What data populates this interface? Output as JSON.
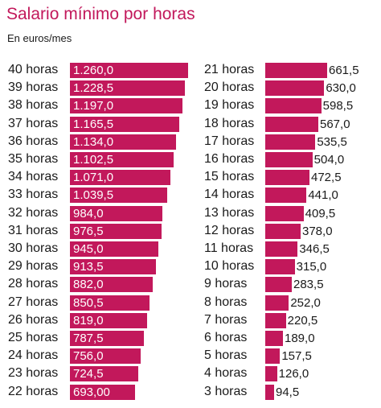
{
  "title": "Salario mínimo por horas",
  "subtitle": "En euros/mes",
  "colors": {
    "bar": "#c2185b",
    "title": "#c2185b"
  },
  "chart_data": [
    {
      "type": "bar",
      "orientation": "horizontal",
      "categories": [
        "40 horas",
        "39 horas",
        "38 horas",
        "37 horas",
        "36 horas",
        "35 horas",
        "34 horas",
        "33 horas",
        "32 horas",
        "31 horas",
        "30 horas",
        "29 horas",
        "28 horas",
        "27 horas",
        "26 horas",
        "25 horas",
        "24 horas",
        "23 horas",
        "22 horas"
      ],
      "values": [
        1260.0,
        1228.5,
        1197.0,
        1165.5,
        1134.0,
        1102.5,
        1071.0,
        1039.5,
        984.0,
        976.5,
        945.0,
        913.5,
        882.0,
        850.5,
        819.0,
        787.5,
        756.0,
        724.5,
        693.0
      ],
      "value_labels": [
        "1.260,0",
        "1.228,5",
        "1.197,0",
        "1.165,5",
        "1.134,0",
        "1.102,5",
        "1.071,0",
        "1.039,5",
        "984,0",
        "976,5",
        "945,0",
        "913,5",
        "882,0",
        "850,5",
        "819,0",
        "787,5",
        "756,0",
        "724,5",
        "693,00"
      ],
      "label_position": "inside"
    },
    {
      "type": "bar",
      "orientation": "horizontal",
      "categories": [
        "21 horas",
        "20 horas",
        "19 horas",
        "18 horas",
        "17 horas",
        "16 horas",
        "15 horas",
        "14 horas",
        "13 horas",
        "12 horas",
        "11 horas",
        "10 horas",
        "9 horas",
        "8 horas",
        "7 horas",
        "6 horas",
        "5 horas",
        "4 horas",
        "3 horas"
      ],
      "values": [
        661.5,
        630.0,
        598.5,
        567.0,
        535.5,
        504.0,
        472.5,
        441.0,
        409.5,
        378.0,
        346.5,
        315.0,
        283.5,
        252.0,
        220.5,
        189.0,
        157.5,
        126.0,
        94.5
      ],
      "value_labels": [
        "661,5",
        "630,0",
        "598,5",
        "567,0",
        "535,5",
        "504,0",
        "472,5",
        "441,0",
        "409,5",
        "378,0",
        "346,5",
        "315,0",
        "283,5",
        "252,0",
        "220,5",
        "189,0",
        "157,5",
        "126,0",
        "94,5"
      ],
      "label_position": "outside"
    }
  ]
}
